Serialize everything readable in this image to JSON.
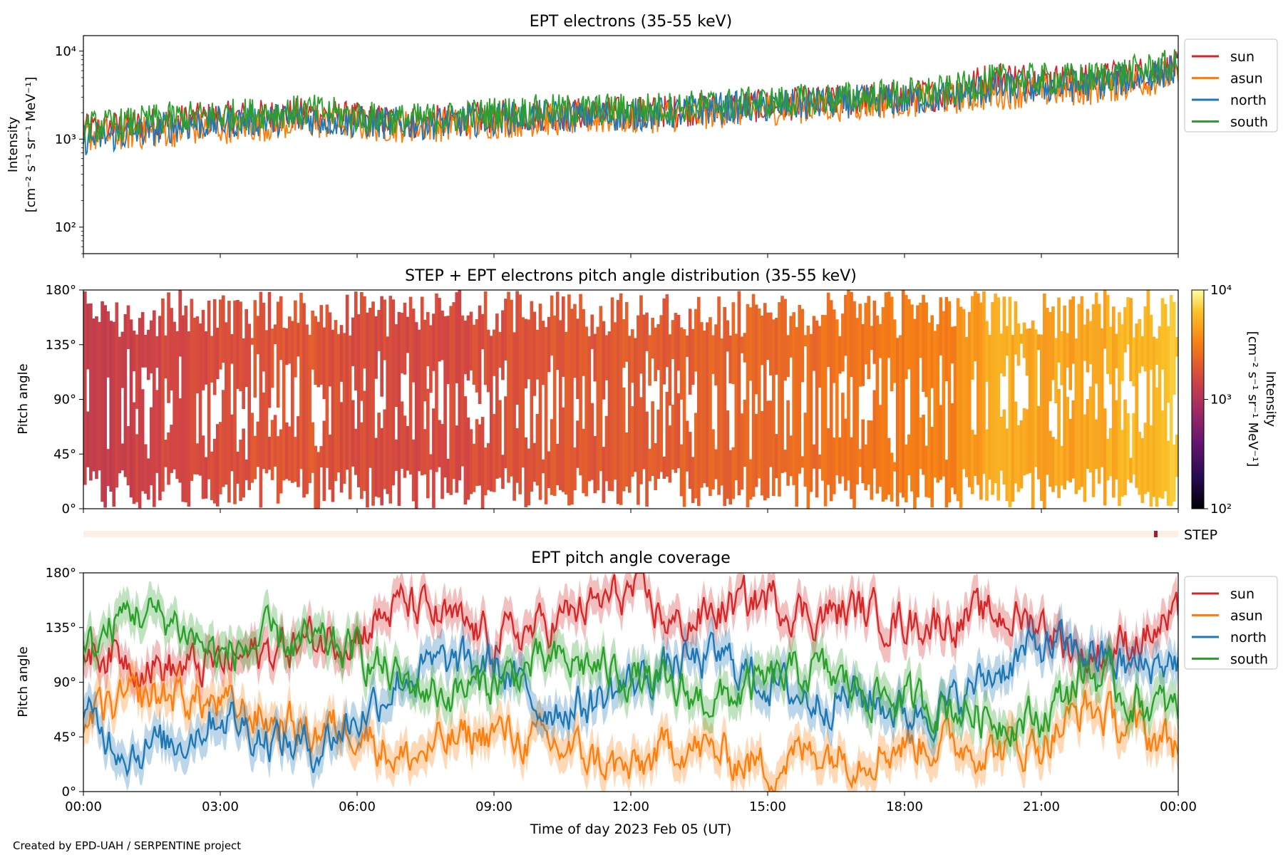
{
  "chart_data": [
    {
      "type": "line",
      "title": "EPT electrons (35-55 keV)",
      "ylabel_line1": "Intensity",
      "ylabel_line2": "[cm⁻² s⁻¹ sr⁻¹ MeV⁻¹]",
      "yscale": "log",
      "ylim": [
        50,
        15000
      ],
      "y_ticks": [
        "10²",
        "10³",
        "10⁴"
      ],
      "xlim_hours": [
        0,
        24
      ],
      "legend": "right-outside",
      "series": [
        {
          "name": "sun",
          "color": "#d62728",
          "x_hours": [
            0,
            1,
            2,
            3,
            4,
            5,
            6,
            7,
            8,
            9,
            10,
            11,
            12,
            13,
            14,
            15,
            16,
            17,
            18,
            19,
            20,
            21,
            22,
            23,
            24
          ],
          "values": [
            1250,
            1400,
            1600,
            1750,
            1850,
            1950,
            1700,
            1550,
            1600,
            1800,
            1900,
            1950,
            2000,
            2100,
            2300,
            2400,
            2600,
            2800,
            3000,
            3300,
            5200,
            4800,
            4600,
            5500,
            6500
          ]
        },
        {
          "name": "asun",
          "color": "#ff7f0e",
          "x_hours": [
            0,
            1,
            2,
            3,
            4,
            5,
            6,
            7,
            8,
            9,
            10,
            11,
            12,
            13,
            14,
            15,
            16,
            17,
            18,
            19,
            20,
            21,
            22,
            23,
            24
          ],
          "values": [
            1100,
            1150,
            1250,
            1350,
            1450,
            1550,
            1450,
            1400,
            1450,
            1550,
            1650,
            1700,
            1750,
            1850,
            2050,
            2200,
            2350,
            2500,
            2700,
            2900,
            3300,
            3500,
            3700,
            4300,
            5500
          ]
        },
        {
          "name": "north",
          "color": "#1f77b4",
          "x_hours": [
            0,
            1,
            2,
            3,
            4,
            5,
            6,
            7,
            8,
            9,
            10,
            11,
            12,
            13,
            14,
            15,
            16,
            17,
            18,
            19,
            20,
            21,
            22,
            23,
            24
          ],
          "values": [
            1000,
            1150,
            1400,
            1550,
            1650,
            1700,
            1550,
            1500,
            1550,
            1700,
            1800,
            1850,
            1900,
            2000,
            2250,
            2350,
            2500,
            2700,
            2800,
            3100,
            3800,
            3900,
            4100,
            4900,
            6200
          ]
        },
        {
          "name": "south",
          "color": "#2ca02c",
          "x_hours": [
            0,
            1,
            2,
            3,
            4,
            5,
            6,
            7,
            8,
            9,
            10,
            11,
            12,
            13,
            14,
            15,
            16,
            17,
            18,
            19,
            20,
            21,
            22,
            23,
            24
          ],
          "values": [
            1350,
            1500,
            1750,
            1850,
            2000,
            2100,
            1800,
            1650,
            1750,
            2000,
            2100,
            2150,
            2200,
            2300,
            2500,
            2600,
            2800,
            3000,
            3250,
            3500,
            4700,
            4800,
            4900,
            5800,
            7000
          ]
        }
      ]
    },
    {
      "type": "heatmap",
      "title": "STEP + EPT electrons pitch angle distribution (35-55 keV)",
      "ylabel": "Pitch angle",
      "ylim": [
        0,
        180
      ],
      "y_ticks": [
        "0°",
        "45°",
        "90°",
        "135°",
        "180°"
      ],
      "colorbar": {
        "label_line1": "Intensity",
        "label_line2": "[cm⁻² s⁻¹ sr⁻¹ MeV⁻¹]",
        "scale": "log",
        "range": [
          100,
          10000
        ],
        "ticks": [
          "10²",
          "10³",
          "10⁴"
        ],
        "colormap": "inferno"
      },
      "intensity_by_hour": [
        1250,
        1400,
        1600,
        1750,
        1850,
        1950,
        1700,
        1550,
        1600,
        1800,
        1900,
        1950,
        2000,
        2100,
        2300,
        2400,
        2600,
        2800,
        3000,
        3300,
        5200,
        4800,
        4600,
        5500,
        6500
      ],
      "step_label": "STEP",
      "step_marker_hour": 23.5
    },
    {
      "type": "line",
      "title": "EPT pitch angle coverage",
      "ylabel": "Pitch angle",
      "ylim": [
        0,
        180
      ],
      "y_ticks": [
        "0°",
        "45°",
        "90°",
        "135°",
        "180°"
      ],
      "xlim_hours": [
        0,
        24
      ],
      "x_ticks": [
        "00:00",
        "03:00",
        "06:00",
        "09:00",
        "12:00",
        "15:00",
        "18:00",
        "21:00",
        "00:00"
      ],
      "xlabel": "Time of day 2023 Feb 05 (UT)",
      "legend": "right-outside",
      "series": [
        {
          "name": "sun",
          "color": "#d62728",
          "x_hours": [
            0,
            1,
            2,
            3,
            4,
            5,
            6,
            7,
            8,
            9,
            10,
            11,
            12,
            13,
            14,
            15,
            16,
            17,
            18,
            19,
            20,
            21,
            22,
            23,
            24
          ],
          "values": [
            120,
            110,
            100,
            105,
            115,
            125,
            130,
            155,
            140,
            125,
            135,
            150,
            165,
            135,
            150,
            160,
            145,
            150,
            140,
            140,
            145,
            140,
            110,
            125,
            140
          ]
        },
        {
          "name": "asun",
          "color": "#ff7f0e",
          "x_hours": [
            0,
            1,
            2,
            3,
            4,
            5,
            6,
            7,
            8,
            9,
            10,
            11,
            12,
            13,
            14,
            15,
            16,
            17,
            18,
            19,
            20,
            21,
            22,
            23,
            24
          ],
          "values": [
            60,
            75,
            80,
            70,
            60,
            50,
            55,
            25,
            40,
            50,
            40,
            30,
            15,
            40,
            30,
            20,
            35,
            30,
            40,
            40,
            35,
            40,
            70,
            50,
            40
          ]
        },
        {
          "name": "north",
          "color": "#1f77b4",
          "x_hours": [
            0,
            1,
            2,
            3,
            4,
            5,
            6,
            7,
            8,
            9,
            10,
            11,
            12,
            13,
            14,
            15,
            16,
            17,
            18,
            19,
            20,
            21,
            22,
            23,
            24
          ],
          "values": [
            60,
            35,
            40,
            65,
            45,
            35,
            60,
            95,
            105,
            105,
            70,
            70,
            90,
            105,
            110,
            90,
            75,
            80,
            65,
            70,
            100,
            120,
            115,
            100,
            110
          ]
        },
        {
          "name": "south",
          "color": "#2ca02c",
          "x_hours": [
            0,
            1,
            2,
            3,
            4,
            5,
            6,
            7,
            8,
            9,
            10,
            11,
            12,
            13,
            14,
            15,
            16,
            17,
            18,
            19,
            20,
            21,
            22,
            23,
            24
          ],
          "values": [
            110,
            150,
            140,
            110,
            125,
            120,
            115,
            90,
            80,
            90,
            105,
            105,
            95,
            80,
            75,
            90,
            100,
            85,
            75,
            70,
            60,
            60,
            100,
            75,
            65
          ]
        }
      ]
    }
  ],
  "footer": {
    "credit": "Created by EPD-UAH / SERPENTINE project"
  }
}
